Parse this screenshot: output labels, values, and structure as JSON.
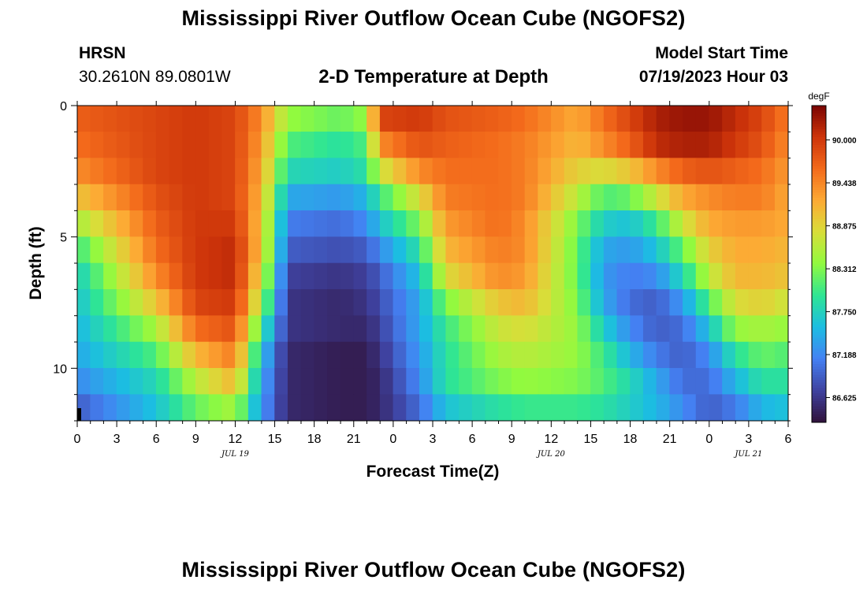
{
  "page": {
    "title": "Mississippi River Outflow Ocean Cube (NGOFS2)",
    "title_bottom": "Mississippi River Outflow Ocean Cube (NGOFS2)",
    "station": "HRSN",
    "coords": "30.2610N  89.0801W",
    "plot_title": "2-D Temperature at Depth",
    "model_label": "Model Start Time",
    "model_time": "07/19/2023 Hour 03"
  },
  "chart_data": {
    "type": "heatmap",
    "title": "2-D Temperature at Depth",
    "xlabel": "Forecast Time(Z)",
    "ylabel": "Depth (ft)",
    "x_tick_labels": [
      "0",
      "3",
      "6",
      "9",
      "12",
      "15",
      "18",
      "21",
      "0",
      "3",
      "6",
      "9",
      "12",
      "15",
      "18",
      "21",
      "0",
      "3",
      "6"
    ],
    "x_range_hours": [
      0,
      54
    ],
    "date_labels": [
      {
        "hour": 12,
        "label": "JUL 19"
      },
      {
        "hour": 36,
        "label": "JUL 20"
      },
      {
        "hour": 51,
        "label": "JUL 21"
      }
    ],
    "y_tick_labels": [
      "0",
      "5",
      "10"
    ],
    "ylim": [
      12,
      0
    ],
    "y_levels_ft": [
      0.5,
      1.5,
      2.5,
      3.5,
      4.5,
      5.5,
      6.5,
      7.5,
      8.5,
      9.5,
      10.5,
      11.5
    ],
    "time_steps_hours": [
      0,
      6,
      9,
      12,
      14,
      16,
      20,
      22,
      23,
      26,
      28,
      32,
      34,
      38,
      40,
      42,
      44,
      46,
      48,
      50,
      52,
      54
    ],
    "colorbar": {
      "unit": "degF",
      "tick_labels": [
        "90.000",
        "89.438",
        "88.875",
        "88.312",
        "87.750",
        "87.188",
        "86.625"
      ],
      "range": [
        86.3,
        90.45
      ]
    },
    "values": [
      [
        89.7,
        89.9,
        90.0,
        89.9,
        89.4,
        88.4,
        88.2,
        88.4,
        89.9,
        90.0,
        89.8,
        89.7,
        89.6,
        89.2,
        89.6,
        89.9,
        90.2,
        90.3,
        90.3,
        90.1,
        89.9,
        89.5
      ],
      [
        89.6,
        89.9,
        90.0,
        89.9,
        89.3,
        88.1,
        87.9,
        88.1,
        89.4,
        89.8,
        89.7,
        89.6,
        89.5,
        89.1,
        89.4,
        89.7,
        90.1,
        90.2,
        90.2,
        90.0,
        89.8,
        89.4
      ],
      [
        89.4,
        89.9,
        90.0,
        89.9,
        89.2,
        87.8,
        87.7,
        87.9,
        88.7,
        89.4,
        89.6,
        89.6,
        89.5,
        88.9,
        88.8,
        89.0,
        89.4,
        89.7,
        89.8,
        89.7,
        89.6,
        89.3
      ],
      [
        89.0,
        89.8,
        90.0,
        89.9,
        89.1,
        87.4,
        87.3,
        87.5,
        88.0,
        88.8,
        89.5,
        89.6,
        89.5,
        88.6,
        88.1,
        88.2,
        88.7,
        89.2,
        89.4,
        89.5,
        89.5,
        89.2
      ],
      [
        88.5,
        89.7,
        90.0,
        90.0,
        89.0,
        87.1,
        87.0,
        87.2,
        87.6,
        88.3,
        89.3,
        89.6,
        89.4,
        88.3,
        87.7,
        87.6,
        88.0,
        88.7,
        89.2,
        89.3,
        89.3,
        89.2
      ],
      [
        88.0,
        89.6,
        90.0,
        90.1,
        89.0,
        86.9,
        86.8,
        86.9,
        87.2,
        87.9,
        89.1,
        89.5,
        89.4,
        88.2,
        87.4,
        87.3,
        87.6,
        88.2,
        88.9,
        89.2,
        89.2,
        89.1
      ],
      [
        87.7,
        89.4,
        90.0,
        90.1,
        88.8,
        86.7,
        86.6,
        86.7,
        86.9,
        87.6,
        88.8,
        89.4,
        89.3,
        88.2,
        87.3,
        87.1,
        87.2,
        87.8,
        88.6,
        89.1,
        89.1,
        89.0
      ],
      [
        87.6,
        89.0,
        89.9,
        90.0,
        88.5,
        86.6,
        86.5,
        86.6,
        86.8,
        87.4,
        88.3,
        89.0,
        89.1,
        88.3,
        87.4,
        87.0,
        86.9,
        87.3,
        88.1,
        88.8,
        88.9,
        88.7
      ],
      [
        87.5,
        88.5,
        89.6,
        89.8,
        88.0,
        86.6,
        86.5,
        86.5,
        86.7,
        87.4,
        88.0,
        88.7,
        88.8,
        88.4,
        87.7,
        87.2,
        86.9,
        87.0,
        87.6,
        88.4,
        88.5,
        88.4
      ],
      [
        87.4,
        88.1,
        89.1,
        89.5,
        87.6,
        86.5,
        86.4,
        86.4,
        86.6,
        87.3,
        87.9,
        88.5,
        88.6,
        88.4,
        88.0,
        87.5,
        87.1,
        86.9,
        87.2,
        87.9,
        88.2,
        88.1
      ],
      [
        87.2,
        87.8,
        88.6,
        89.1,
        87.4,
        86.5,
        86.4,
        86.4,
        86.5,
        87.2,
        87.9,
        88.3,
        88.4,
        88.3,
        88.1,
        87.8,
        87.4,
        87.0,
        87.0,
        87.5,
        87.9,
        87.9
      ],
      [
        86.9,
        87.6,
        88.2,
        88.5,
        87.3,
        86.5,
        86.4,
        86.4,
        86.5,
        87.0,
        87.6,
        87.9,
        88.0,
        88.0,
        87.9,
        87.7,
        87.5,
        87.2,
        86.9,
        87.1,
        87.5,
        87.6
      ]
    ]
  }
}
